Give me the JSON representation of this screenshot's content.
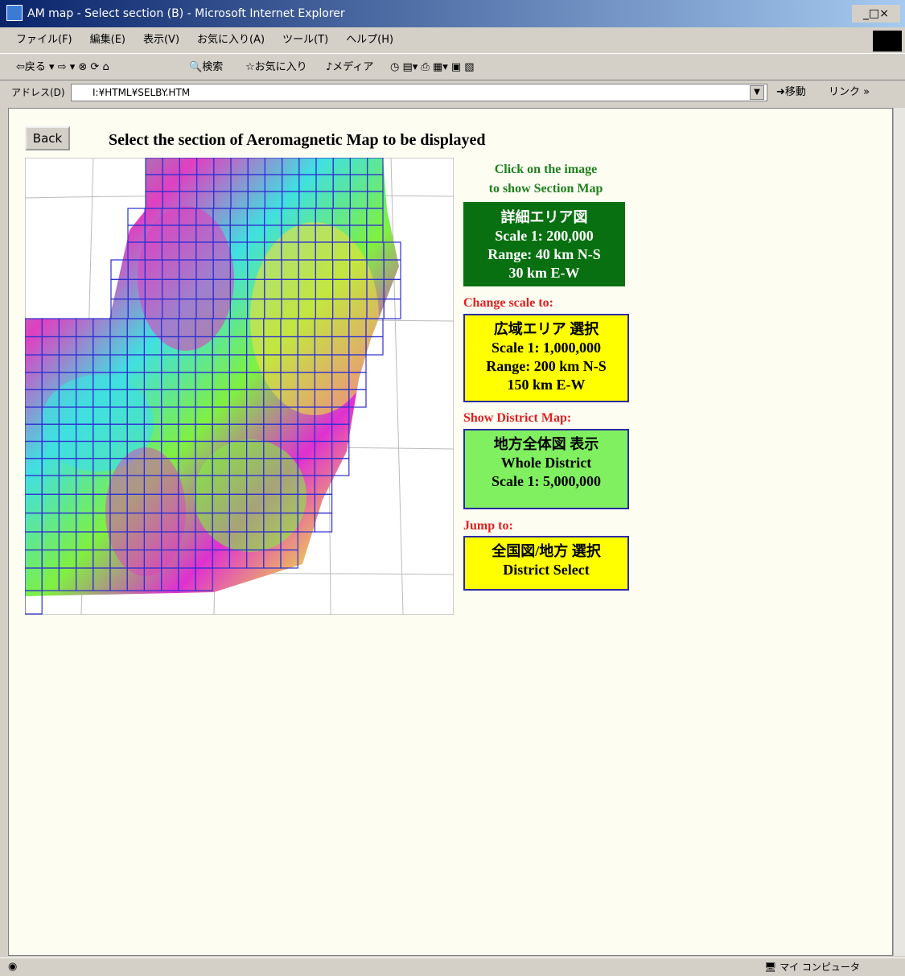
{
  "window": {
    "title": "AM map - Select section (B) - Microsoft Internet Explorer"
  },
  "menu": [
    "ファイル(F)",
    "編集(E)",
    "表示(V)",
    "お気に入り(A)",
    "ツール(T)",
    "ヘルプ(H)"
  ],
  "toolbar": {
    "back": "戻る",
    "search": "検索",
    "favorites": "お気に入り",
    "media": "メディア"
  },
  "address": {
    "label": "アドレス(D)",
    "url": "I:¥HTML¥SELBY.HTM",
    "go": "移動",
    "links": "リンク"
  },
  "page": {
    "back_button": "Back",
    "heading": "Select the section of Aeromagnetic Map to be displayed",
    "hint": [
      "Click on the image",
      "to show Section Map"
    ],
    "current": {
      "title": "詳細エリア図",
      "lines": [
        "Scale  1: 200,000",
        "Range:  40 km N-S",
        "30 km E-W"
      ]
    },
    "change_label": "Change scale to:",
    "wide": {
      "title": "広域エリア  選択",
      "lines": [
        "Scale  1: 1,000,000",
        "Range:  200 km N-S",
        "150 km E-W"
      ]
    },
    "district_label": "Show District Map:",
    "district": {
      "title": "地方全体図  表示",
      "lines": [
        "Whole District",
        "Scale   1: 5,000,000"
      ]
    },
    "jump_label": "Jump to:",
    "jump": {
      "title": "全国図/地方  選択",
      "lines": [
        "District Select"
      ]
    }
  },
  "status": {
    "zone": "マイ コンピュータ"
  }
}
